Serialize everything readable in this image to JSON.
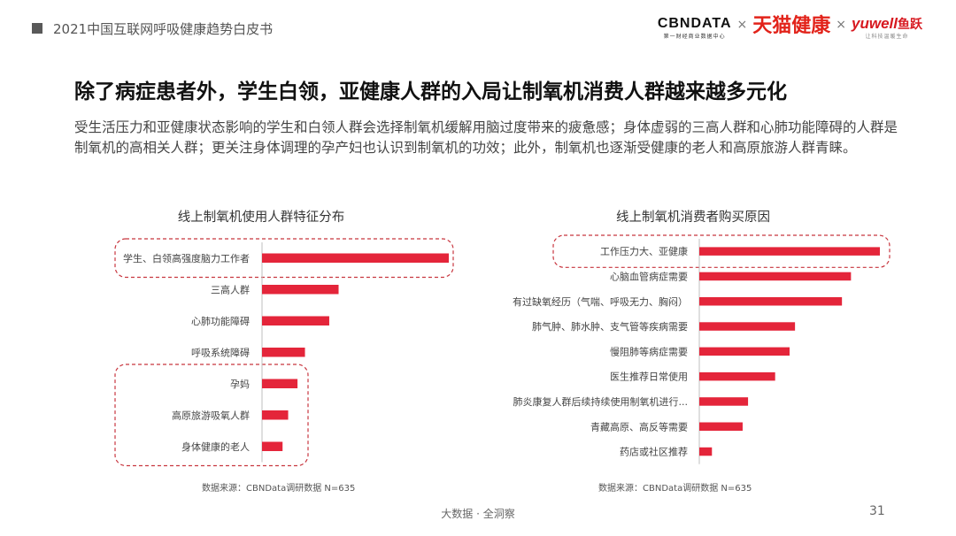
{
  "header": {
    "title": "2021中国互联网呼吸健康趋势白皮书"
  },
  "logos": {
    "cbn_main": "CBNDATA",
    "cbn_sub": "第一财经商业数据中心",
    "sep": "×",
    "tmall": "天猫健康",
    "yuwell_main": "yuwell",
    "yuwell_cn": "鱼跃",
    "yuwell_sub": "让科技温暖生命"
  },
  "headline": "除了病症患者外，学生白领，亚健康人群的入局让制氧机消费人群越来越多元化",
  "body_text": "受生活压力和亚健康状态影响的学生和白领人群会选择制氧机缓解用脑过度带来的疲惫感；身体虚弱的三高人群和心肺功能障碍的人群是制氧机的高相关人群；更关注身体调理的孕产妇也认识到制氧机的功效；此外，制氧机也逐渐受健康的老人和高原旅游人群青睐。",
  "colors": {
    "bar": "#e4253a",
    "highlight_border": "#c8363f"
  },
  "chart_data": [
    {
      "type": "bar",
      "orientation": "horizontal",
      "title": "线上制氧机使用人群特征分布",
      "categories": [
        "学生、白领高强度脑力工作者",
        "三高人群",
        "心肺功能障碍",
        "呼吸系统障碍",
        "孕妈",
        "高原旅游吸氧人群",
        "身体健康的老人"
      ],
      "values": [
        100,
        41,
        36,
        23,
        19,
        14,
        11
      ],
      "highlight_groups": [
        [
          0,
          0
        ],
        [
          4,
          6
        ]
      ],
      "source": "数据来源：CBNData调研数据 N=635"
    },
    {
      "type": "bar",
      "orientation": "horizontal",
      "title": "线上制氧机消费者购买原因",
      "categories": [
        "工作压力大、亚健康",
        "心脑血管病症需要",
        "有过缺氧经历（气喘、呼吸无力、胸闷）",
        "肺气肿、肺水肿、支气管等疾病需要",
        "慢阻肺等病症需要",
        "医生推荐日常使用",
        "肺炎康复人群后续持续使用制氧机进行...",
        "青藏高原、高反等需要",
        "药店或社区推荐"
      ],
      "values": [
        100,
        84,
        79,
        53,
        50,
        42,
        27,
        24,
        7
      ],
      "highlight_groups": [
        [
          0,
          0
        ]
      ],
      "source": "数据来源：CBNData调研数据 N=635"
    }
  ],
  "footer": {
    "text": "大数据 · 全洞察",
    "page": "31"
  }
}
